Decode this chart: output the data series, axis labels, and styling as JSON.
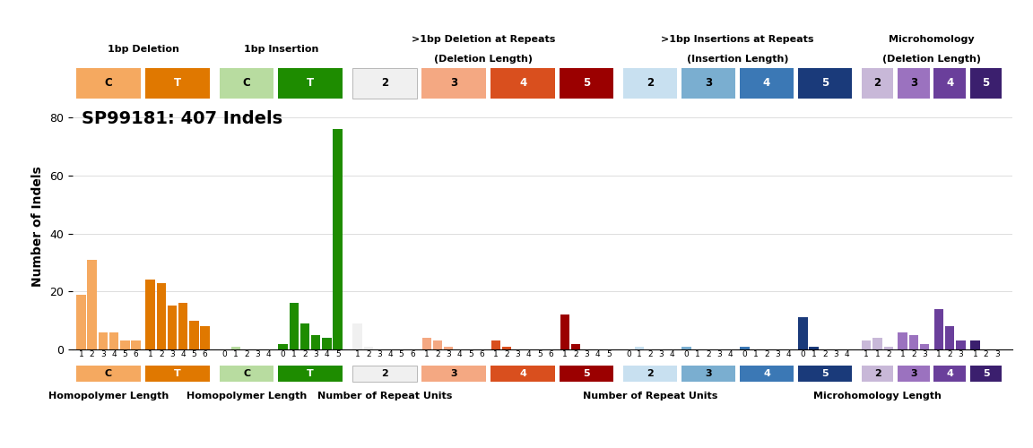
{
  "title": "SP99181: 407 Indels",
  "ylabel": "Number of Indels",
  "ylim": [
    0,
    85
  ],
  "yticks": [
    0,
    20,
    40,
    60,
    80
  ],
  "sections": [
    {
      "label": "1bp Deletion",
      "sublabel": "",
      "subsections": [
        {
          "name": "C",
          "color": "#F5A960",
          "text_color": "black",
          "bars": [
            19,
            31,
            6,
            6,
            3,
            3
          ],
          "xticks": [
            "1",
            "2",
            "3",
            "4",
            "5",
            "6"
          ],
          "xlabel": "Homopolymer Length"
        },
        {
          "name": "T",
          "color": "#E07800",
          "text_color": "white",
          "bars": [
            24,
            23,
            15,
            16,
            10,
            8
          ],
          "xticks": [
            "1",
            "2",
            "3",
            "4",
            "5",
            "6"
          ],
          "xlabel": ""
        }
      ]
    },
    {
      "label": "1bp Insertion",
      "sublabel": "",
      "subsections": [
        {
          "name": "C",
          "color": "#B8DCA0",
          "text_color": "black",
          "bars": [
            0,
            1,
            0,
            0,
            0
          ],
          "xticks": [
            "0",
            "1",
            "2",
            "3",
            "4"
          ],
          "xlabel": "Homopolymer Length"
        },
        {
          "name": "T",
          "color": "#1E8C00",
          "text_color": "white",
          "bars": [
            2,
            16,
            9,
            5,
            4,
            76
          ],
          "xticks": [
            "0",
            "1",
            "2",
            "3",
            "4",
            "5"
          ],
          "xlabel": ""
        }
      ]
    },
    {
      "label": ">1bp Deletion at Repeats",
      "sublabel": "(Deletion Length)",
      "subsections": [
        {
          "name": "2",
          "color": "#F0F0F0",
          "text_color": "black",
          "bars": [
            9,
            1,
            0,
            0,
            0,
            0
          ],
          "xticks": [
            "1",
            "2",
            "3",
            "4",
            "5",
            "6"
          ],
          "xlabel": "Number of Repeat Units"
        },
        {
          "name": "3",
          "color": "#F4A882",
          "text_color": "black",
          "bars": [
            4,
            3,
            1,
            0,
            0,
            0
          ],
          "xticks": [
            "1",
            "2",
            "3",
            "4",
            "5",
            "6"
          ],
          "xlabel": ""
        },
        {
          "name": "4",
          "color": "#D94F1E",
          "text_color": "white",
          "bars": [
            3,
            1,
            0,
            0,
            0,
            0
          ],
          "xticks": [
            "1",
            "2",
            "3",
            "4",
            "5",
            "6"
          ],
          "xlabel": ""
        },
        {
          "name": "5",
          "color": "#9B0000",
          "text_color": "white",
          "bars": [
            12,
            2,
            0,
            0,
            0
          ],
          "xticks": [
            "1",
            "2",
            "3",
            "4",
            "5"
          ],
          "xlabel": ""
        }
      ]
    },
    {
      "label": ">1bp Insertions at Repeats",
      "sublabel": "(Insertion Length)",
      "subsections": [
        {
          "name": "2",
          "color": "#C8E0F0",
          "text_color": "black",
          "bars": [
            0,
            1,
            0,
            0,
            0
          ],
          "xticks": [
            "0",
            "1",
            "2",
            "3",
            "4"
          ],
          "xlabel": "Number of Repeat Units"
        },
        {
          "name": "3",
          "color": "#7AAED0",
          "text_color": "black",
          "bars": [
            1,
            0,
            0,
            0,
            0
          ],
          "xticks": [
            "0",
            "1",
            "2",
            "3",
            "4"
          ],
          "xlabel": ""
        },
        {
          "name": "4",
          "color": "#3B78B5",
          "text_color": "white",
          "bars": [
            1,
            0,
            0,
            0,
            0
          ],
          "xticks": [
            "0",
            "1",
            "2",
            "3",
            "4"
          ],
          "xlabel": ""
        },
        {
          "name": "5",
          "color": "#1A3A7A",
          "text_color": "white",
          "bars": [
            11,
            1,
            0,
            0,
            0
          ],
          "xticks": [
            "0",
            "1",
            "2",
            "3",
            "4"
          ],
          "xlabel": ""
        }
      ]
    },
    {
      "label": "Microhomology",
      "sublabel": "(Deletion Length)",
      "subsections": [
        {
          "name": "2",
          "color": "#C8B8D8",
          "text_color": "black",
          "bars": [
            3,
            4,
            1
          ],
          "xticks": [
            "1",
            "1",
            "2"
          ],
          "xlabel": "Microhomology Length"
        },
        {
          "name": "3",
          "color": "#9B72BF",
          "text_color": "black",
          "bars": [
            6,
            5,
            2
          ],
          "xticks": [
            "1",
            "2",
            "3"
          ],
          "xlabel": ""
        },
        {
          "name": "4",
          "color": "#6A3F9B",
          "text_color": "white",
          "bars": [
            14,
            8,
            3
          ],
          "xticks": [
            "1",
            "2",
            "3"
          ],
          "xlabel": ""
        },
        {
          "name": "5",
          "color": "#3B1F6E",
          "text_color": "white",
          "bars": [
            3,
            0,
            0
          ],
          "xticks": [
            "1",
            "2",
            "3"
          ],
          "xlabel": ""
        }
      ]
    }
  ]
}
